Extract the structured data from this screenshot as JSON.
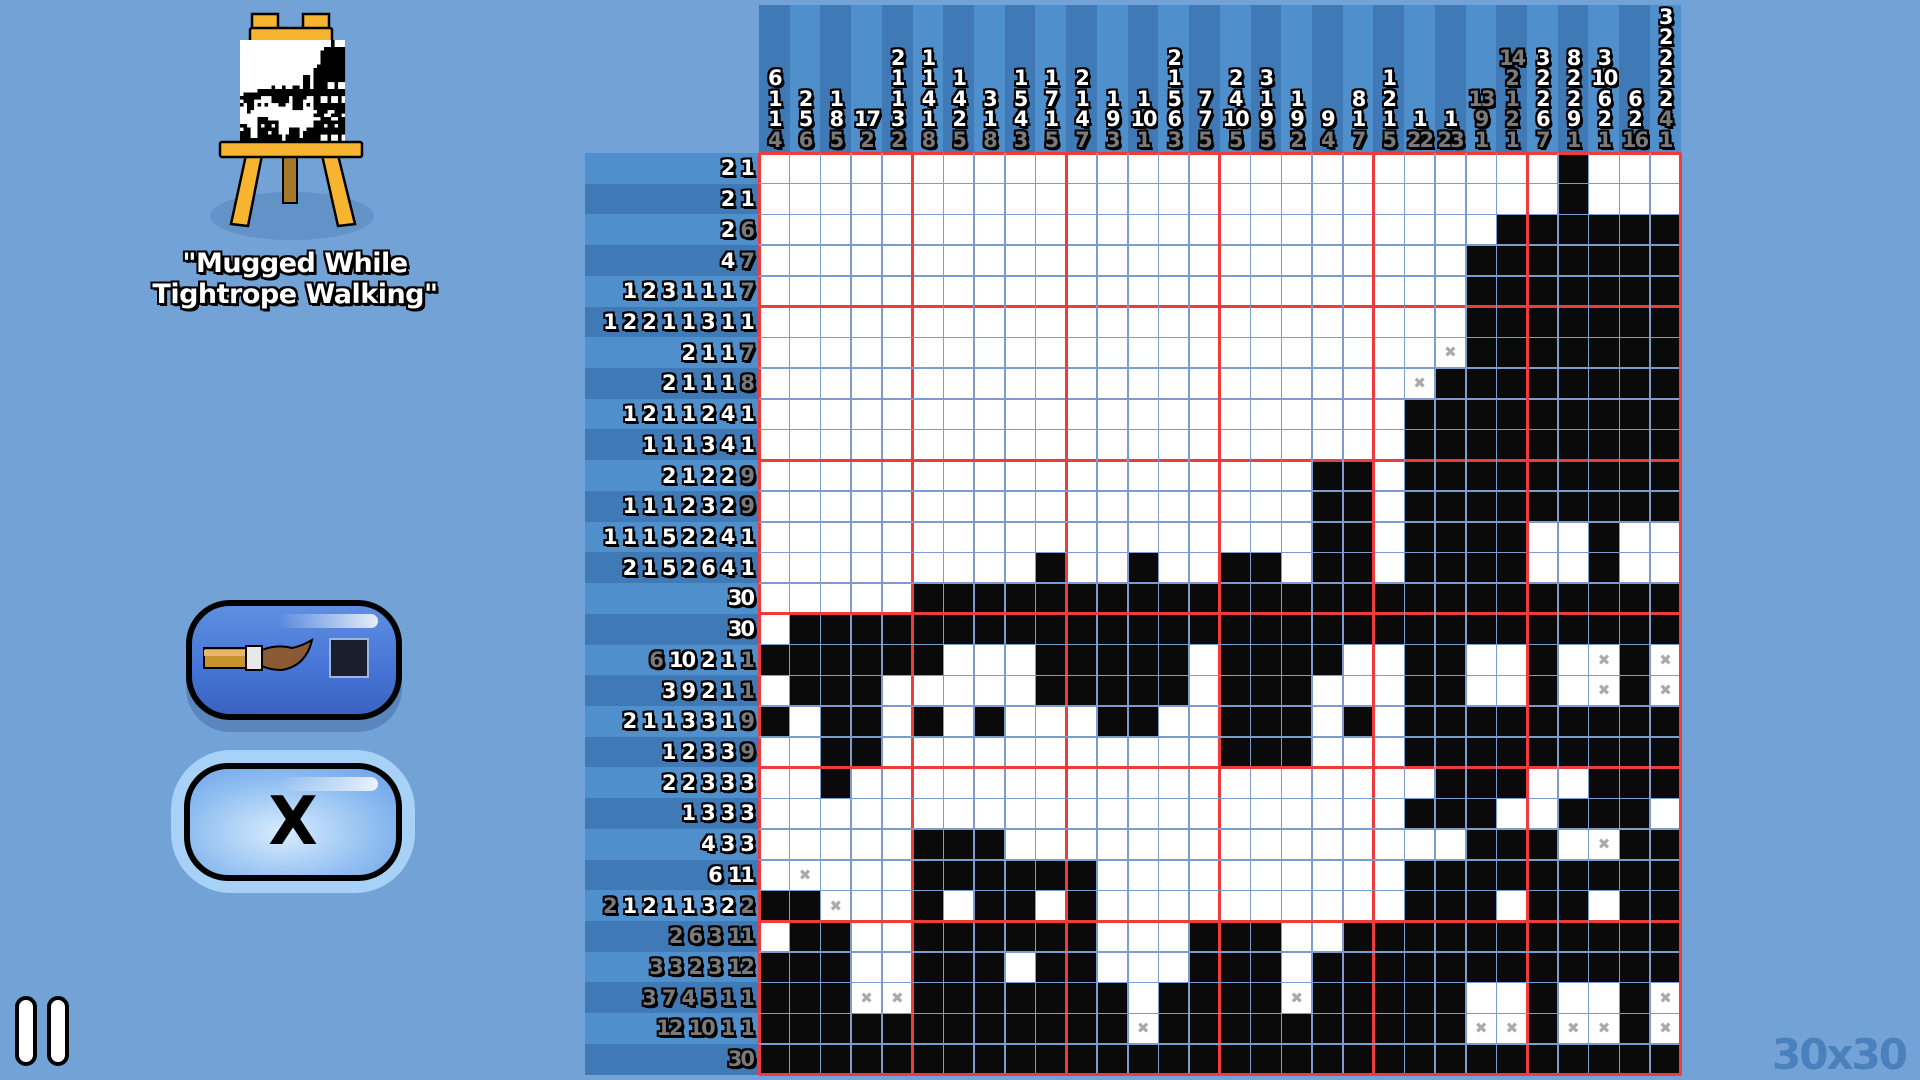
{
  "puzzle": {
    "title": "\"Mugged While Tightrope Walking\"",
    "size_label": "30x30",
    "thumbnail_icon": "easel-painting-icon"
  },
  "tools": {
    "fill_tool_icon": "paintbrush-icon",
    "fill_color": "#1a1f2e",
    "mark_label": "X",
    "selected_tool": "mark"
  },
  "pause_icon": "pause-icon",
  "colors": {
    "background": "#72a2d6",
    "filled": "#0a0a0a",
    "grid_line": "#7b9ccc",
    "block_line": "#ee3b3b",
    "mark": "#aaaaaa",
    "done_clue": "#7a7a7a"
  },
  "column_clues": [
    {
      "numbers": [
        6,
        1,
        1,
        4
      ],
      "done": [
        false,
        false,
        false,
        true
      ]
    },
    {
      "numbers": [
        2,
        5,
        6
      ],
      "done": [
        false,
        false,
        true
      ]
    },
    {
      "numbers": [
        1,
        8,
        5
      ],
      "done": [
        false,
        false,
        true
      ]
    },
    {
      "numbers": [
        17,
        2
      ],
      "done": [
        false,
        true
      ]
    },
    {
      "numbers": [
        2,
        1,
        1,
        3,
        2
      ],
      "done": [
        false,
        false,
        false,
        false,
        true
      ]
    },
    {
      "numbers": [
        1,
        1,
        4,
        1,
        8
      ],
      "done": [
        false,
        false,
        false,
        false,
        true
      ]
    },
    {
      "numbers": [
        1,
        4,
        2,
        5
      ],
      "done": [
        false,
        false,
        false,
        true
      ]
    },
    {
      "numbers": [
        3,
        1,
        8
      ],
      "done": [
        false,
        false,
        true
      ]
    },
    {
      "numbers": [
        1,
        5,
        4,
        3
      ],
      "done": [
        false,
        false,
        false,
        true
      ]
    },
    {
      "numbers": [
        1,
        7,
        1,
        5
      ],
      "done": [
        false,
        false,
        false,
        true
      ]
    },
    {
      "numbers": [
        2,
        1,
        4,
        7
      ],
      "done": [
        false,
        false,
        false,
        true
      ]
    },
    {
      "numbers": [
        1,
        9,
        3
      ],
      "done": [
        false,
        false,
        true
      ]
    },
    {
      "numbers": [
        1,
        10,
        1
      ],
      "done": [
        false,
        false,
        true
      ]
    },
    {
      "numbers": [
        2,
        1,
        5,
        6,
        3
      ],
      "done": [
        false,
        false,
        false,
        false,
        true
      ]
    },
    {
      "numbers": [
        7,
        7,
        5
      ],
      "done": [
        false,
        false,
        true
      ]
    },
    {
      "numbers": [
        2,
        4,
        10,
        5
      ],
      "done": [
        false,
        false,
        false,
        true
      ]
    },
    {
      "numbers": [
        3,
        1,
        9,
        5
      ],
      "done": [
        false,
        false,
        false,
        true
      ]
    },
    {
      "numbers": [
        1,
        9,
        2
      ],
      "done": [
        false,
        false,
        true
      ]
    },
    {
      "numbers": [
        9,
        4
      ],
      "done": [
        false,
        true
      ]
    },
    {
      "numbers": [
        8,
        1,
        7
      ],
      "done": [
        false,
        false,
        true
      ]
    },
    {
      "numbers": [
        1,
        2,
        1,
        5
      ],
      "done": [
        false,
        false,
        false,
        true
      ]
    },
    {
      "numbers": [
        1,
        22
      ],
      "done": [
        false,
        true
      ]
    },
    {
      "numbers": [
        1,
        23
      ],
      "done": [
        false,
        true
      ]
    },
    {
      "numbers": [
        13,
        9,
        1
      ],
      "done": [
        true,
        true,
        true
      ]
    },
    {
      "numbers": [
        14,
        2,
        1,
        2,
        1
      ],
      "done": [
        true,
        true,
        true,
        true,
        true
      ]
    },
    {
      "numbers": [
        3,
        2,
        2,
        6,
        7
      ],
      "done": [
        false,
        false,
        false,
        false,
        true
      ]
    },
    {
      "numbers": [
        8,
        2,
        2,
        9,
        1
      ],
      "done": [
        false,
        false,
        false,
        false,
        true
      ]
    },
    {
      "numbers": [
        3,
        10,
        6,
        2,
        1
      ],
      "done": [
        false,
        false,
        false,
        false,
        true
      ]
    },
    {
      "numbers": [
        6,
        2,
        16
      ],
      "done": [
        false,
        false,
        true
      ]
    },
    {
      "numbers": [
        3,
        2,
        2,
        2,
        2,
        4,
        1
      ],
      "done": [
        false,
        false,
        false,
        false,
        false,
        true,
        true
      ]
    }
  ],
  "row_clues": [
    {
      "numbers": [
        2,
        1
      ],
      "done": [
        false,
        false
      ]
    },
    {
      "numbers": [
        2,
        1
      ],
      "done": [
        false,
        false
      ]
    },
    {
      "numbers": [
        2,
        6
      ],
      "done": [
        false,
        true
      ]
    },
    {
      "numbers": [
        4,
        7
      ],
      "done": [
        false,
        true
      ]
    },
    {
      "numbers": [
        1,
        2,
        3,
        1,
        1,
        1,
        7
      ],
      "done": [
        false,
        false,
        false,
        false,
        false,
        false,
        true
      ]
    },
    {
      "numbers": [
        1,
        2,
        2,
        1,
        1,
        3,
        1,
        1
      ],
      "done": [
        false,
        false,
        false,
        false,
        false,
        false,
        false,
        false
      ]
    },
    {
      "numbers": [
        2,
        1,
        1,
        7
      ],
      "done": [
        false,
        false,
        false,
        true
      ]
    },
    {
      "numbers": [
        2,
        1,
        1,
        1,
        8
      ],
      "done": [
        false,
        false,
        false,
        false,
        true
      ]
    },
    {
      "numbers": [
        1,
        2,
        1,
        1,
        2,
        4,
        1
      ],
      "done": [
        false,
        false,
        false,
        false,
        false,
        false,
        false
      ]
    },
    {
      "numbers": [
        1,
        1,
        1,
        3,
        4,
        1
      ],
      "done": [
        false,
        false,
        false,
        false,
        false,
        false
      ]
    },
    {
      "numbers": [
        2,
        1,
        2,
        2,
        9
      ],
      "done": [
        false,
        false,
        false,
        false,
        true
      ]
    },
    {
      "numbers": [
        1,
        1,
        1,
        2,
        3,
        2,
        9
      ],
      "done": [
        false,
        false,
        false,
        false,
        false,
        false,
        true
      ]
    },
    {
      "numbers": [
        1,
        1,
        1,
        5,
        2,
        2,
        4,
        1
      ],
      "done": [
        false,
        false,
        false,
        false,
        false,
        false,
        false,
        false
      ]
    },
    {
      "numbers": [
        2,
        1,
        5,
        2,
        6,
        4,
        1
      ],
      "done": [
        false,
        false,
        false,
        false,
        false,
        false,
        false
      ]
    },
    {
      "numbers": [
        30
      ],
      "done": [
        false
      ]
    },
    {
      "numbers": [
        30
      ],
      "done": [
        false
      ]
    },
    {
      "numbers": [
        6,
        10,
        2,
        1,
        1
      ],
      "done": [
        true,
        false,
        false,
        false,
        true
      ]
    },
    {
      "numbers": [
        3,
        9,
        2,
        1,
        1
      ],
      "done": [
        false,
        false,
        false,
        false,
        true
      ]
    },
    {
      "numbers": [
        2,
        1,
        1,
        3,
        3,
        1,
        9
      ],
      "done": [
        false,
        false,
        false,
        false,
        false,
        false,
        true
      ]
    },
    {
      "numbers": [
        1,
        2,
        3,
        3,
        9
      ],
      "done": [
        false,
        false,
        false,
        false,
        true
      ]
    },
    {
      "numbers": [
        2,
        2,
        3,
        3,
        3
      ],
      "done": [
        false,
        false,
        false,
        false,
        false
      ]
    },
    {
      "numbers": [
        1,
        3,
        3,
        3
      ],
      "done": [
        false,
        false,
        false,
        false
      ]
    },
    {
      "numbers": [
        4,
        3,
        3
      ],
      "done": [
        false,
        false,
        false
      ]
    },
    {
      "numbers": [
        6,
        11
      ],
      "done": [
        false,
        false
      ]
    },
    {
      "numbers": [
        2,
        1,
        2,
        1,
        1,
        3,
        2,
        2
      ],
      "done": [
        true,
        false,
        false,
        false,
        false,
        false,
        false,
        true
      ]
    },
    {
      "numbers": [
        2,
        6,
        3,
        11
      ],
      "done": [
        true,
        true,
        true,
        true
      ]
    },
    {
      "numbers": [
        3,
        3,
        2,
        3,
        12
      ],
      "done": [
        true,
        true,
        true,
        true,
        true
      ]
    },
    {
      "numbers": [
        3,
        7,
        4,
        5,
        1,
        1
      ],
      "done": [
        true,
        true,
        true,
        true,
        true,
        true
      ]
    },
    {
      "numbers": [
        12,
        10,
        1,
        1
      ],
      "done": [
        true,
        true,
        true,
        true
      ]
    },
    {
      "numbers": [
        30
      ],
      "done": [
        true
      ]
    }
  ],
  "grid_legend": {
    "#": "filled",
    ".": "empty",
    "x": "marked"
  },
  "grid": [
    "..........................#...",
    "..........................#...",
    "........................######",
    ".......................#######",
    ".......................#######",
    ".......................#######",
    "......................x#######",
    ".....................x########",
    ".....................#########",
    ".....................#########",
    "..................##.#########",
    "..................##.#########",
    "..................##.####..#..",
    ".........#..#..##.##.####..#..",
    ".....#########################",
    ".#############################",
    "######...#####.####..##..#.x#x",
    ".###.....#####.###...##..#.x#x",
    "#.##.#.#...##..###.#.#########",
    "..##...........###...#########",
    "..#...................###..###.",
    ".....................###..###.",
    ".....###...............###.x###.",
    ".x...######..........#########",
    "##x..#.##.#..........###.##.##",
    ".##..######...###..###########",
    "###..###.##...###.############",
    "###xx#######.####x#####..#..#x",
    "############x##########xx#xx#x",
    "##############################"
  ]
}
